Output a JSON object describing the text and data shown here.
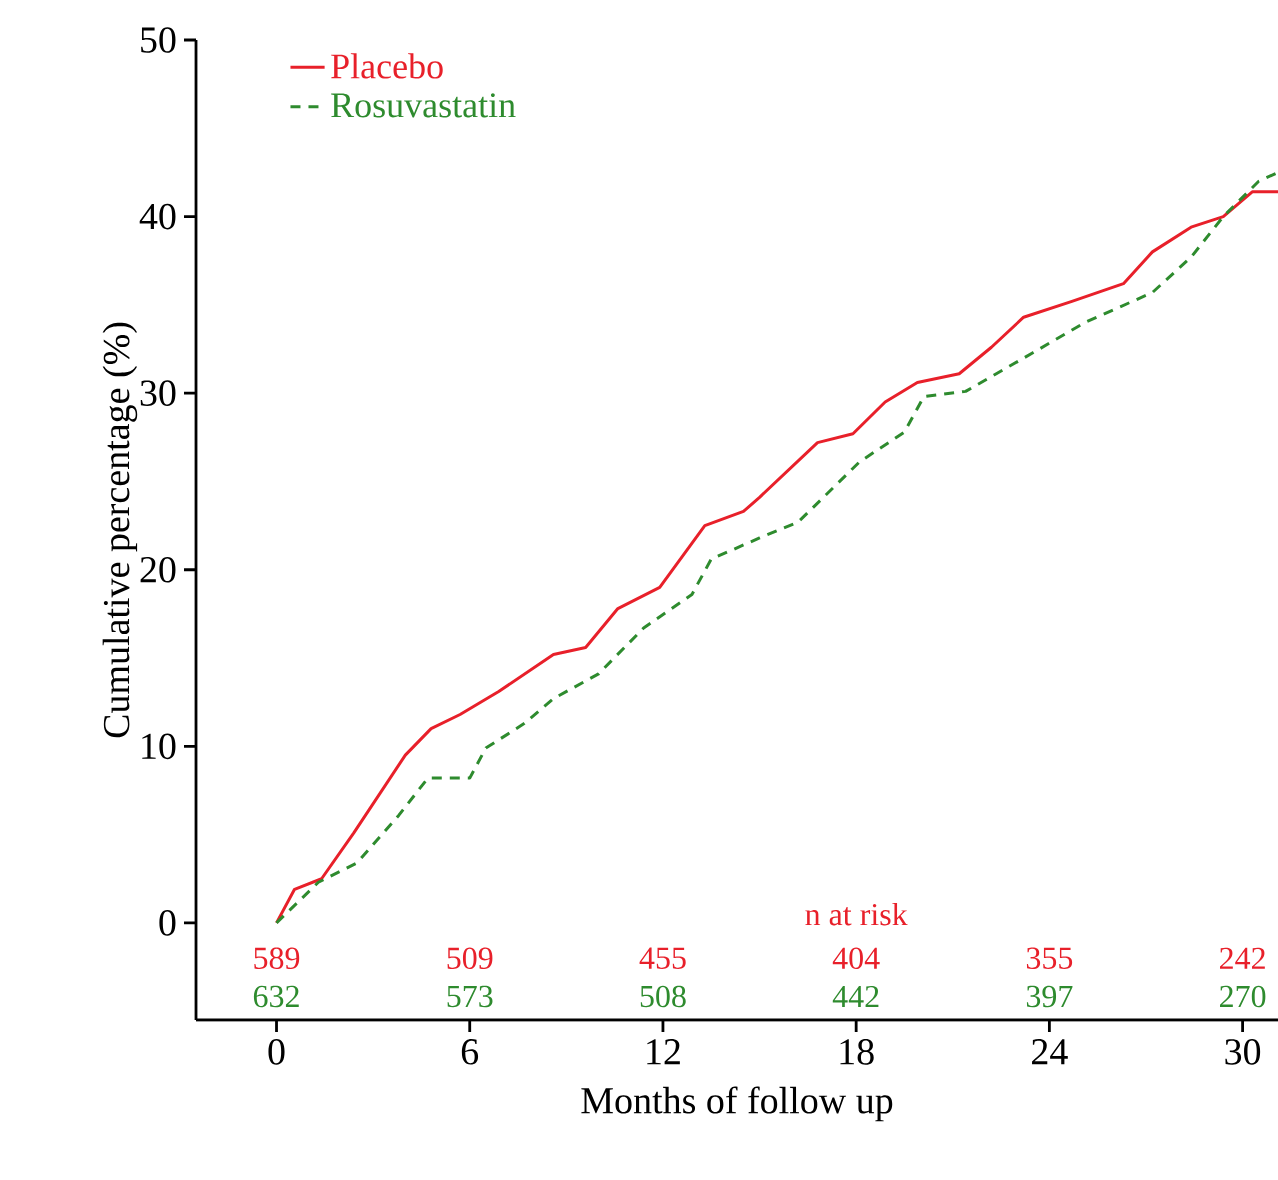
{
  "chart_data": {
    "type": "line",
    "xlabel": "Months of follow up",
    "ylabel": "Cumulative percentage (%)",
    "xlim": [
      -2.5,
      31.1
    ],
    "ylim": [
      -5.5,
      50
    ],
    "xticks": [
      0,
      6,
      12,
      18,
      24,
      30
    ],
    "yticks": [
      0,
      10,
      20,
      30,
      40,
      50
    ],
    "legend": "top left",
    "series": [
      {
        "name": "Placebo",
        "color": "#e8202a",
        "line_style": "solid",
        "x": [
          0,
          0.56,
          1.4,
          2.4,
          3.2,
          4.0,
          4.8,
          5.7,
          6.9,
          8.6,
          9.6,
          10.6,
          11.9,
          13.3,
          14.5,
          15.0,
          16.8,
          17.9,
          18.9,
          19.9,
          21.2,
          22.2,
          23.2,
          24.7,
          26.3,
          27.2,
          28.4,
          29.4,
          30.3,
          31.1
        ],
        "values": [
          0,
          1.9,
          2.5,
          5.1,
          7.3,
          9.5,
          11.0,
          11.8,
          13.1,
          15.2,
          15.6,
          17.8,
          19.0,
          22.5,
          23.3,
          24.1,
          27.2,
          27.7,
          29.5,
          30.6,
          31.1,
          32.6,
          34.3,
          35.2,
          36.2,
          38.0,
          39.4,
          40.0,
          41.4,
          41.4
        ]
      },
      {
        "name": "Rosuvastatin",
        "color": "#2e8b2e",
        "line_style": "dashed",
        "x": [
          0,
          1.3,
          2.5,
          3.8,
          4.7,
          6.0,
          6.5,
          7.7,
          8.6,
          10.0,
          11.4,
          12.9,
          13.5,
          15.0,
          16.2,
          18.1,
          19.5,
          20.1,
          21.4,
          23.5,
          25.1,
          27.2,
          28.4,
          29.4,
          30.5,
          31.1
        ],
        "values": [
          0,
          2.3,
          3.4,
          6.1,
          8.2,
          8.2,
          9.9,
          11.3,
          12.7,
          14.1,
          16.7,
          18.6,
          20.6,
          21.8,
          22.7,
          26.1,
          27.8,
          29.8,
          30.1,
          32.3,
          34.0,
          35.7,
          37.7,
          40.0,
          42.0,
          42.5
        ]
      }
    ],
    "annotations": [
      "n at risk",
      "589",
      "509",
      "455",
      "404",
      "355",
      "242",
      "632",
      "573",
      "508",
      "442",
      "397",
      "270"
    ]
  }
}
